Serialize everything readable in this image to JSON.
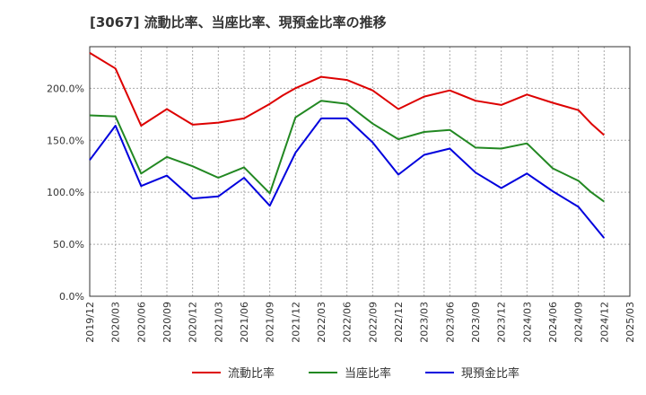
{
  "chart_data": {
    "type": "line",
    "title": "[3067]  流動比率、当座比率、現預金比率の推移",
    "xlabel": "",
    "ylabel": "",
    "ylim": [
      0,
      240
    ],
    "yticks": [
      0,
      50,
      100,
      150,
      200
    ],
    "ytick_labels": [
      "0.0%",
      "50.0%",
      "100.0%",
      "150.0%",
      "200.0%"
    ],
    "x_tick_labels": [
      "2019/12",
      "2020/03",
      "2020/06",
      "2020/09",
      "2020/12",
      "2021/03",
      "2021/06",
      "2021/09",
      "2021/12",
      "2022/03",
      "2022/06",
      "2022/09",
      "2022/12",
      "2023/03",
      "2023/06",
      "2023/09",
      "2023/12",
      "2024/03",
      "2024/06",
      "2024/09",
      "2024/12",
      "2025/03"
    ],
    "grid": true,
    "legend_position": "bottom",
    "series": [
      {
        "name": "流動比率",
        "color": "#dd0000",
        "points": [
          [
            0,
            234
          ],
          [
            1,
            219
          ],
          [
            2,
            164
          ],
          [
            3,
            180
          ],
          [
            4,
            165
          ],
          [
            5,
            167
          ],
          [
            6,
            171
          ],
          [
            7,
            185
          ],
          [
            7.5,
            193
          ],
          [
            8,
            200
          ],
          [
            9,
            211
          ],
          [
            10,
            208
          ],
          [
            11,
            198
          ],
          [
            12,
            180
          ],
          [
            13,
            192
          ],
          [
            14,
            198
          ],
          [
            15,
            188
          ],
          [
            16,
            184
          ],
          [
            17,
            194
          ],
          [
            18,
            186
          ],
          [
            19,
            179
          ],
          [
            19.5,
            166
          ],
          [
            20,
            155
          ]
        ]
      },
      {
        "name": "当座比率",
        "color": "#228822",
        "points": [
          [
            0,
            174
          ],
          [
            1,
            173
          ],
          [
            2,
            118
          ],
          [
            3,
            134
          ],
          [
            4,
            125
          ],
          [
            5,
            114
          ],
          [
            6,
            124
          ],
          [
            7,
            99
          ],
          [
            8,
            172
          ],
          [
            9,
            188
          ],
          [
            10,
            185
          ],
          [
            11,
            166
          ],
          [
            12,
            151
          ],
          [
            13,
            158
          ],
          [
            14,
            160
          ],
          [
            15,
            143
          ],
          [
            16,
            142
          ],
          [
            17,
            147
          ],
          [
            18,
            123
          ],
          [
            19,
            111
          ],
          [
            19.5,
            100
          ],
          [
            20,
            91
          ]
        ]
      },
      {
        "name": "現預金比率",
        "color": "#0000dd",
        "points": [
          [
            0,
            131
          ],
          [
            1,
            164
          ],
          [
            2,
            106
          ],
          [
            3,
            116
          ],
          [
            4,
            94
          ],
          [
            5,
            96
          ],
          [
            6,
            114
          ],
          [
            7,
            87
          ],
          [
            8,
            138
          ],
          [
            9,
            171
          ],
          [
            10,
            171
          ],
          [
            11,
            148
          ],
          [
            12,
            117
          ],
          [
            13,
            136
          ],
          [
            14,
            142
          ],
          [
            15,
            119
          ],
          [
            16,
            104
          ],
          [
            17,
            118
          ],
          [
            18,
            101
          ],
          [
            19,
            86
          ],
          [
            19.5,
            71
          ],
          [
            20,
            56
          ]
        ]
      }
    ]
  }
}
